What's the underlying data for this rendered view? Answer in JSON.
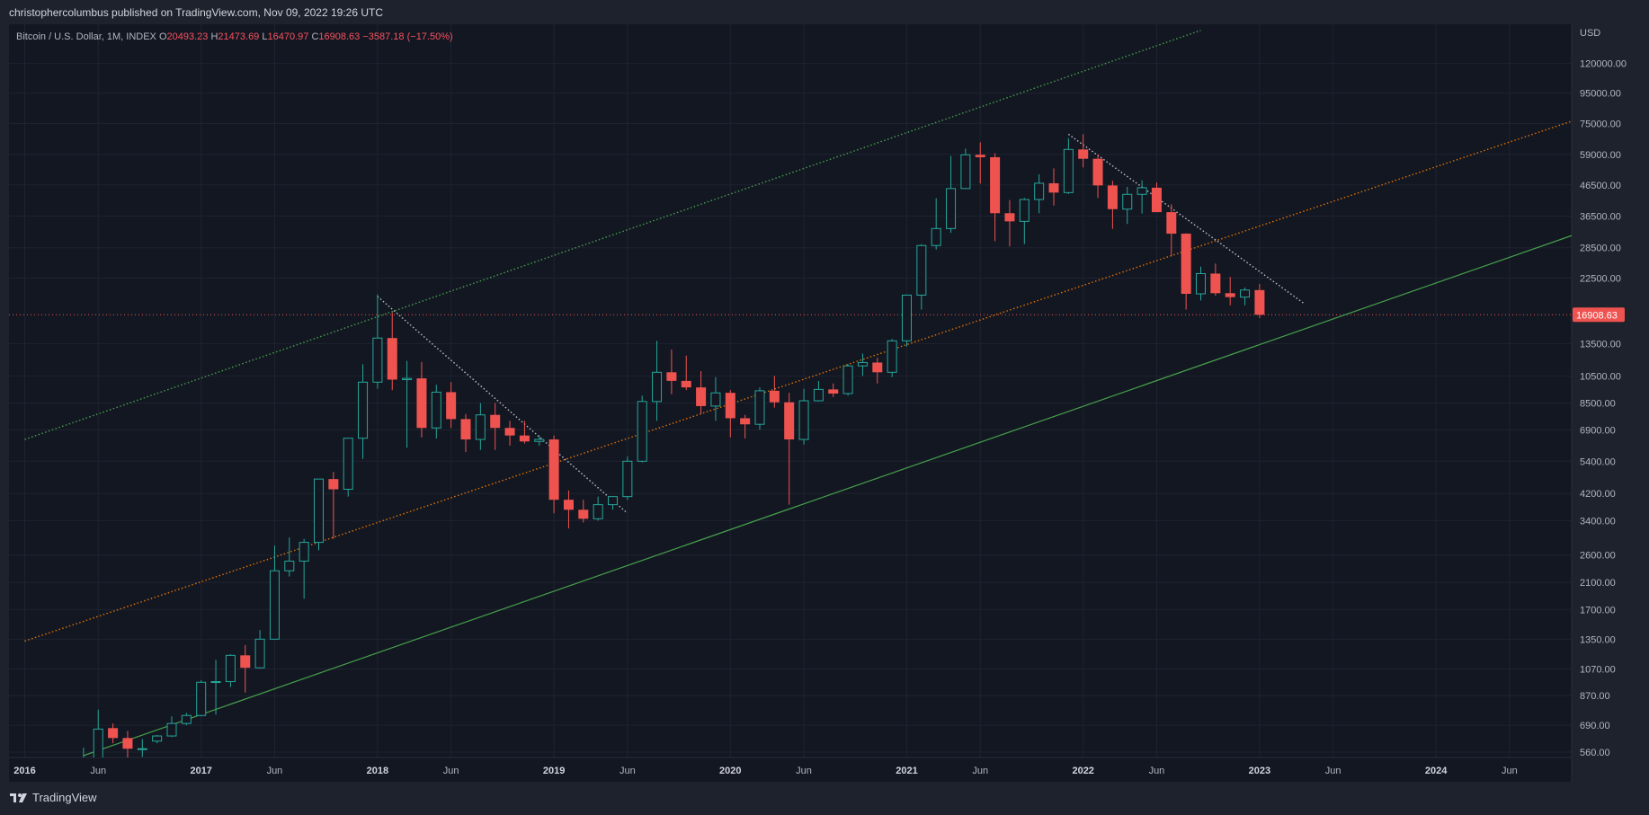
{
  "header": {
    "published": "christophercolumbus published on TradingView.com, Nov 09, 2022 19:26 UTC"
  },
  "legend": {
    "symbol": "Bitcoin / U.S. Dollar, 1M, INDEX",
    "open_label": "O",
    "open": "20493.23",
    "high_label": "H",
    "high": "21473.69",
    "low_label": "L",
    "low": "16470.97",
    "close_label": "C",
    "close": "16908.63",
    "change": "−3587.18 (−17.50%)"
  },
  "footer": {
    "brand": "TradingView"
  },
  "colors": {
    "up": "#26a69a",
    "down": "#ef5350",
    "background": "#131722",
    "grid": "#1f2331",
    "trendline": "#4caf50",
    "mid_channel": "#f57c00",
    "upper_channel": "#4caf50",
    "price_line": "#ef5350"
  },
  "chart_data": {
    "type": "candlestick",
    "scale": "log",
    "currency": "USD",
    "current_price": "16908.63",
    "y_ticks": [
      560,
      690,
      870,
      1070,
      1350,
      1700,
      2100,
      2600,
      3400,
      4200,
      5400,
      6900,
      8500,
      10500,
      13500,
      22500,
      28500,
      36500,
      46500,
      59000,
      75000,
      95000,
      120000
    ],
    "y_tick_labels": [
      "560.00",
      "690.00",
      "870.00",
      "1070.00",
      "1350.00",
      "1700.00",
      "2100.00",
      "2600.00",
      "3400.00",
      "4200.00",
      "5400.00",
      "6900.00",
      "8500.00",
      "10500.00",
      "13500.00",
      "22500.00",
      "28500.00",
      "36500.00",
      "46500.00",
      "59000.00",
      "75000.00",
      "95000.00",
      "120000.00"
    ],
    "x_ticks": [
      {
        "label": "2016",
        "month": 0,
        "major": true
      },
      {
        "label": "Jun",
        "month": 5,
        "major": false
      },
      {
        "label": "2017",
        "month": 12,
        "major": true
      },
      {
        "label": "Jun",
        "month": 17,
        "major": false
      },
      {
        "label": "2018",
        "month": 24,
        "major": true
      },
      {
        "label": "Jun",
        "month": 29,
        "major": false
      },
      {
        "label": "2019",
        "month": 36,
        "major": true
      },
      {
        "label": "Jun",
        "month": 41,
        "major": false
      },
      {
        "label": "2020",
        "month": 48,
        "major": true
      },
      {
        "label": "Jun",
        "month": 53,
        "major": false
      },
      {
        "label": "2021",
        "month": 60,
        "major": true
      },
      {
        "label": "Jun",
        "month": 65,
        "major": false
      },
      {
        "label": "2022",
        "month": 72,
        "major": true
      },
      {
        "label": "Jun",
        "month": 77,
        "major": false
      },
      {
        "label": "2023",
        "month": 84,
        "major": true
      },
      {
        "label": "Jun",
        "month": 89,
        "major": false
      },
      {
        "label": "2024",
        "month": 96,
        "major": true
      },
      {
        "label": "Jun",
        "month": 101,
        "major": false
      }
    ],
    "candles": [
      {
        "m": 4,
        "o": 445,
        "h": 580,
        "l": 440,
        "c": 530
      },
      {
        "m": 5,
        "o": 530,
        "h": 780,
        "l": 520,
        "c": 670
      },
      {
        "m": 6,
        "o": 675,
        "h": 700,
        "l": 600,
        "c": 625
      },
      {
        "m": 7,
        "o": 625,
        "h": 660,
        "l": 470,
        "c": 575
      },
      {
        "m": 8,
        "o": 575,
        "h": 620,
        "l": 540,
        "c": 575
      },
      {
        "m": 9,
        "o": 610,
        "h": 640,
        "l": 600,
        "c": 635
      },
      {
        "m": 10,
        "o": 635,
        "h": 740,
        "l": 630,
        "c": 700
      },
      {
        "m": 11,
        "o": 700,
        "h": 760,
        "l": 690,
        "c": 745
      },
      {
        "m": 12,
        "o": 745,
        "h": 980,
        "l": 740,
        "c": 965
      },
      {
        "m": 13,
        "o": 965,
        "h": 1150,
        "l": 750,
        "c": 970
      },
      {
        "m": 14,
        "o": 970,
        "h": 1200,
        "l": 930,
        "c": 1190
      },
      {
        "m": 15,
        "o": 1190,
        "h": 1290,
        "l": 890,
        "c": 1080
      },
      {
        "m": 16,
        "o": 1080,
        "h": 1450,
        "l": 1075,
        "c": 1350
      },
      {
        "m": 17,
        "o": 1350,
        "h": 2800,
        "l": 1350,
        "c": 2300
      },
      {
        "m": 18,
        "o": 2300,
        "h": 2980,
        "l": 2200,
        "c": 2480
      },
      {
        "m": 19,
        "o": 2480,
        "h": 2950,
        "l": 1850,
        "c": 2870
      },
      {
        "m": 20,
        "o": 2870,
        "h": 4700,
        "l": 2700,
        "c": 4700
      },
      {
        "m": 21,
        "o": 4700,
        "h": 4970,
        "l": 2950,
        "c": 4340
      },
      {
        "m": 22,
        "o": 4340,
        "h": 6470,
        "l": 4100,
        "c": 6460
      },
      {
        "m": 23,
        "o": 6460,
        "h": 11500,
        "l": 5500,
        "c": 10000
      },
      {
        "m": 24,
        "o": 10000,
        "h": 19800,
        "l": 9500,
        "c": 14100
      },
      {
        "m": 25,
        "o": 14100,
        "h": 17200,
        "l": 9400,
        "c": 10200
      },
      {
        "m": 26,
        "o": 10200,
        "h": 11800,
        "l": 6000,
        "c": 10300
      },
      {
        "m": 27,
        "o": 10300,
        "h": 11700,
        "l": 6500,
        "c": 7000
      },
      {
        "m": 28,
        "o": 7000,
        "h": 9800,
        "l": 6450,
        "c": 9250
      },
      {
        "m": 29,
        "o": 9250,
        "h": 10000,
        "l": 7000,
        "c": 7500
      },
      {
        "m": 30,
        "o": 7500,
        "h": 7800,
        "l": 5800,
        "c": 6400
      },
      {
        "m": 31,
        "o": 6400,
        "h": 8500,
        "l": 5900,
        "c": 7750
      },
      {
        "m": 32,
        "o": 7750,
        "h": 8500,
        "l": 5900,
        "c": 7000
      },
      {
        "m": 33,
        "o": 7000,
        "h": 7400,
        "l": 6100,
        "c": 6600
      },
      {
        "m": 34,
        "o": 6600,
        "h": 7400,
        "l": 6200,
        "c": 6300
      },
      {
        "m": 35,
        "o": 6300,
        "h": 6600,
        "l": 6100,
        "c": 6400
      },
      {
        "m": 36,
        "o": 6400,
        "h": 6600,
        "l": 3600,
        "c": 4000
      },
      {
        "m": 37,
        "o": 4000,
        "h": 4300,
        "l": 3200,
        "c": 3700
      },
      {
        "m": 38,
        "o": 3700,
        "h": 4000,
        "l": 3350,
        "c": 3450
      },
      {
        "m": 39,
        "o": 3450,
        "h": 4100,
        "l": 3400,
        "c": 3850
      },
      {
        "m": 40,
        "o": 3850,
        "h": 4100,
        "l": 3700,
        "c": 4100
      },
      {
        "m": 41,
        "o": 4100,
        "h": 5600,
        "l": 4000,
        "c": 5400
      },
      {
        "m": 42,
        "o": 5400,
        "h": 9000,
        "l": 5350,
        "c": 8600
      },
      {
        "m": 43,
        "o": 8600,
        "h": 13800,
        "l": 7400,
        "c": 10800
      },
      {
        "m": 44,
        "o": 10800,
        "h": 12900,
        "l": 9100,
        "c": 10100
      },
      {
        "m": 45,
        "o": 10100,
        "h": 12300,
        "l": 9400,
        "c": 9600
      },
      {
        "m": 46,
        "o": 9600,
        "h": 10900,
        "l": 7800,
        "c": 8300
      },
      {
        "m": 47,
        "o": 8300,
        "h": 10400,
        "l": 7400,
        "c": 9200
      },
      {
        "m": 48,
        "o": 9200,
        "h": 9400,
        "l": 6500,
        "c": 7550
      },
      {
        "m": 49,
        "o": 7550,
        "h": 7750,
        "l": 6450,
        "c": 7200
      },
      {
        "m": 50,
        "o": 7200,
        "h": 9600,
        "l": 6900,
        "c": 9350
      },
      {
        "m": 51,
        "o": 9350,
        "h": 10500,
        "l": 8200,
        "c": 8550
      },
      {
        "m": 52,
        "o": 8550,
        "h": 9200,
        "l": 3850,
        "c": 6400
      },
      {
        "m": 53,
        "o": 6400,
        "h": 9500,
        "l": 6150,
        "c": 8650
      },
      {
        "m": 54,
        "o": 8650,
        "h": 10100,
        "l": 8600,
        "c": 9450
      },
      {
        "m": 55,
        "o": 9450,
        "h": 9900,
        "l": 8900,
        "c": 9150
      },
      {
        "m": 56,
        "o": 9150,
        "h": 11500,
        "l": 9000,
        "c": 11350
      },
      {
        "m": 57,
        "o": 11350,
        "h": 12500,
        "l": 10500,
        "c": 11650
      },
      {
        "m": 58,
        "o": 11650,
        "h": 12100,
        "l": 9900,
        "c": 10800
      },
      {
        "m": 59,
        "o": 10800,
        "h": 14000,
        "l": 10400,
        "c": 13800
      },
      {
        "m": 60,
        "o": 13800,
        "h": 19800,
        "l": 13200,
        "c": 19700
      },
      {
        "m": 61,
        "o": 19700,
        "h": 29300,
        "l": 17600,
        "c": 29000
      },
      {
        "m": 62,
        "o": 29000,
        "h": 41900,
        "l": 28100,
        "c": 33100
      },
      {
        "m": 63,
        "o": 33100,
        "h": 58300,
        "l": 32000,
        "c": 45200
      },
      {
        "m": 64,
        "o": 45200,
        "h": 61700,
        "l": 45000,
        "c": 58800
      },
      {
        "m": 65,
        "o": 58800,
        "h": 64800,
        "l": 47000,
        "c": 57700
      },
      {
        "m": 66,
        "o": 57700,
        "h": 59500,
        "l": 30000,
        "c": 37300
      },
      {
        "m": 67,
        "o": 37300,
        "h": 41300,
        "l": 28800,
        "c": 35000
      },
      {
        "m": 68,
        "o": 35000,
        "h": 42000,
        "l": 29300,
        "c": 41500
      },
      {
        "m": 69,
        "o": 41500,
        "h": 50500,
        "l": 37300,
        "c": 47100
      },
      {
        "m": 70,
        "o": 47100,
        "h": 52900,
        "l": 39600,
        "c": 43800
      },
      {
        "m": 71,
        "o": 43800,
        "h": 66900,
        "l": 43300,
        "c": 61300
      },
      {
        "m": 72,
        "o": 61300,
        "h": 69000,
        "l": 53300,
        "c": 57000
      },
      {
        "m": 73,
        "o": 57000,
        "h": 59000,
        "l": 42000,
        "c": 46300
      },
      {
        "m": 74,
        "o": 46300,
        "h": 48000,
        "l": 33000,
        "c": 38500
      },
      {
        "m": 75,
        "o": 38500,
        "h": 45800,
        "l": 34300,
        "c": 43200
      },
      {
        "m": 76,
        "o": 43200,
        "h": 48200,
        "l": 37200,
        "c": 45500
      },
      {
        "m": 77,
        "o": 45500,
        "h": 47400,
        "l": 37700,
        "c": 37600
      },
      {
        "m": 78,
        "o": 37600,
        "h": 40000,
        "l": 26700,
        "c": 31800
      },
      {
        "m": 79,
        "o": 31800,
        "h": 31900,
        "l": 17600,
        "c": 19900
      },
      {
        "m": 80,
        "o": 19900,
        "h": 24600,
        "l": 18900,
        "c": 23300
      },
      {
        "m": 81,
        "o": 23300,
        "h": 25200,
        "l": 19600,
        "c": 20000
      },
      {
        "m": 82,
        "o": 20000,
        "h": 22700,
        "l": 18200,
        "c": 19400
      },
      {
        "m": 83,
        "o": 19400,
        "h": 20900,
        "l": 18200,
        "c": 20500
      },
      {
        "m": 84,
        "o": 20493.23,
        "h": 21473.69,
        "l": 16470.97,
        "c": 16908.63
      }
    ],
    "lines": [
      {
        "name": "support-trendline",
        "from": {
          "m": 4,
          "p": 545
        },
        "to": {
          "m": 108,
          "p": 35000
        },
        "style": "solid",
        "color": "#4caf50"
      },
      {
        "name": "mid-channel",
        "from": {
          "m": 0,
          "p": 1330
        },
        "to": {
          "m": 108,
          "p": 85000
        },
        "style": "dotted",
        "color": "#f57c00"
      },
      {
        "name": "upper-channel",
        "from": {
          "m": 0,
          "p": 6400
        },
        "to": {
          "m": 80,
          "p": 155000
        },
        "style": "dotted",
        "color": "#4caf50"
      },
      {
        "name": "downtrend-2018",
        "from": {
          "m": 24,
          "p": 19500
        },
        "to": {
          "m": 41,
          "p": 3600
        },
        "style": "dotted",
        "color": "#d1d4dc"
      },
      {
        "name": "downtrend-2022",
        "from": {
          "m": 71,
          "p": 69000
        },
        "to": {
          "m": 87,
          "p": 18500
        },
        "style": "dotted",
        "color": "#d1d4dc"
      }
    ]
  }
}
